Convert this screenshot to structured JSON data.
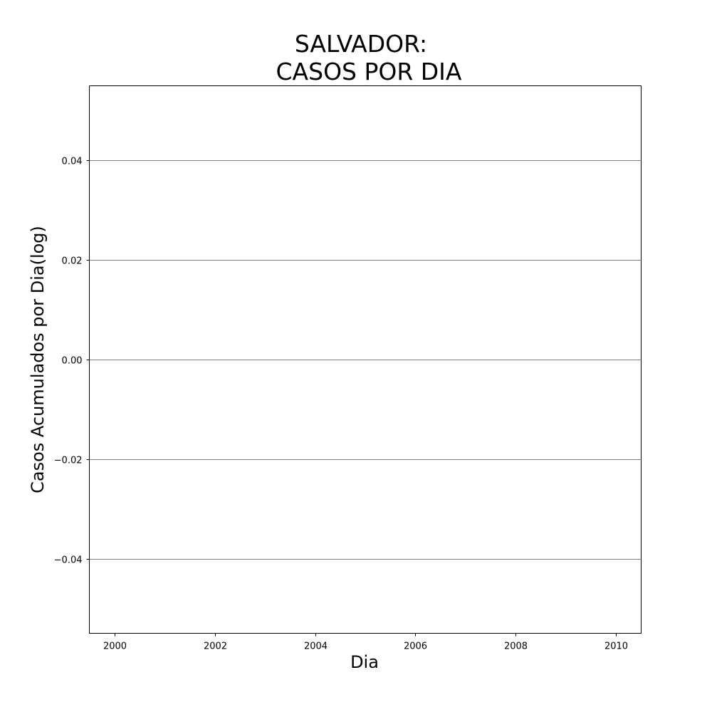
{
  "chart_data": {
    "type": "line",
    "title_lines": [
      "SALVADOR:",
      "CASOS POR DIA"
    ],
    "xlabel": "Dia",
    "ylabel": "Casos Acumulados por Dia(log)",
    "xlim": [
      1999.5,
      2010.5
    ],
    "ylim": [
      -0.055,
      0.055
    ],
    "x_ticks": [
      2000,
      2002,
      2004,
      2006,
      2008,
      2010
    ],
    "x_tick_labels": [
      "2000",
      "2002",
      "2004",
      "2006",
      "2008",
      "2010"
    ],
    "y_ticks": [
      -0.04,
      -0.02,
      0.0,
      0.02,
      0.04
    ],
    "y_tick_labels": [
      "−0.04",
      "−0.02",
      "0.00",
      "0.02",
      "0.04"
    ],
    "grid": "horizontal",
    "series": [],
    "colors": {
      "grid": "#808080",
      "axes": "#000000",
      "background": "#ffffff"
    }
  }
}
